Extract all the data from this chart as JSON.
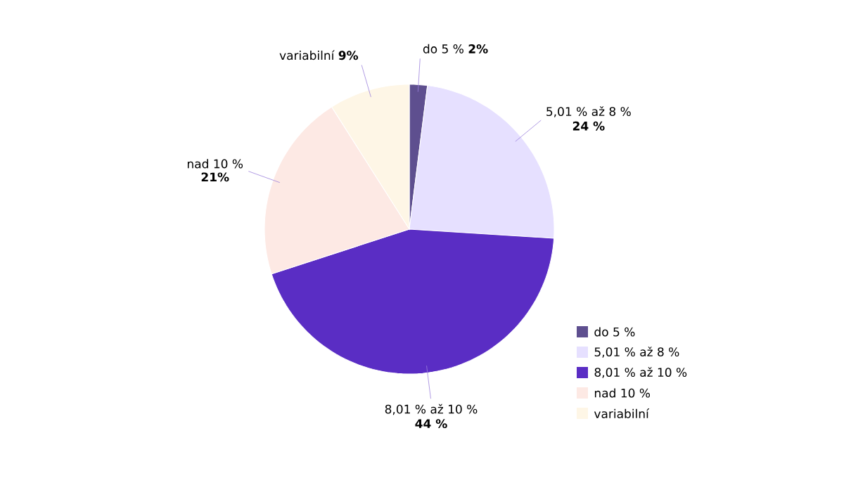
{
  "chart_data": {
    "type": "pie",
    "categories": [
      "do 5 %",
      "5,01 % až 8 %",
      "8,01 % až 10 %",
      "nad 10 %",
      "variabilní"
    ],
    "values": [
      2,
      24,
      44,
      21,
      9
    ],
    "value_labels": [
      "2%",
      "24 %",
      "44 %",
      "21%",
      "9%"
    ],
    "colors": [
      "#5e4f8f",
      "#e6e0ff",
      "#5a2dc4",
      "#fde9e4",
      "#fef6e6"
    ],
    "legend": "right"
  }
}
